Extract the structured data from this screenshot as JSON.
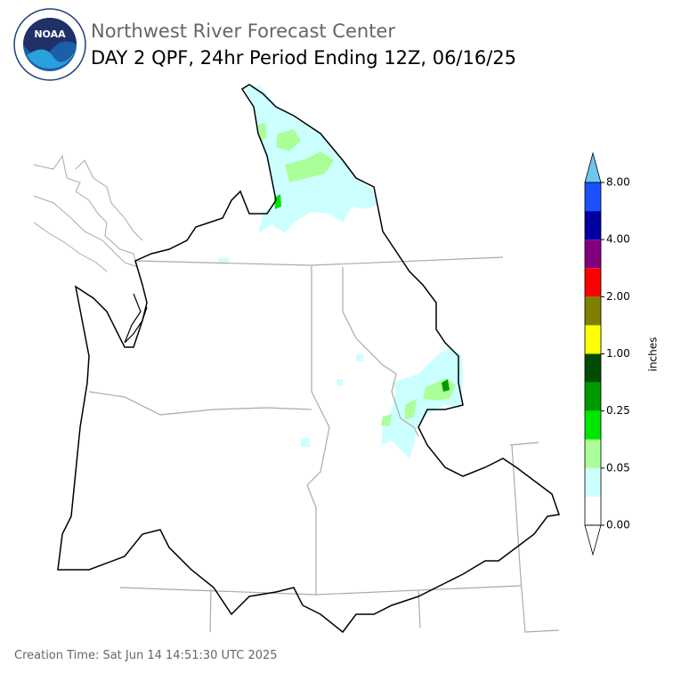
{
  "header": {
    "title": "Northwest River Forecast Center",
    "subtitle": "DAY 2 QPF, 24hr Period Ending 12Z, 06/16/25",
    "logo_text": "NOAA"
  },
  "legend": {
    "unit": "inches",
    "labels": [
      "8.00",
      "4.00",
      "2.00",
      "1.00",
      "0.25",
      "0.05",
      "0.00"
    ],
    "colors": [
      "#1e4fff",
      "#0000a0",
      "#800080",
      "#ff0000",
      "#808000",
      "#ffff00",
      "#004d00",
      "#009a00",
      "#00e600",
      "#aaff99",
      "#ccffff",
      "#ffffff"
    ],
    "over_color": "#6ec6f0",
    "under_color": "#ffffff"
  },
  "footer": {
    "creation_time": "Creation Time: Sat Jun 14 14:51:30 UTC 2025"
  }
}
